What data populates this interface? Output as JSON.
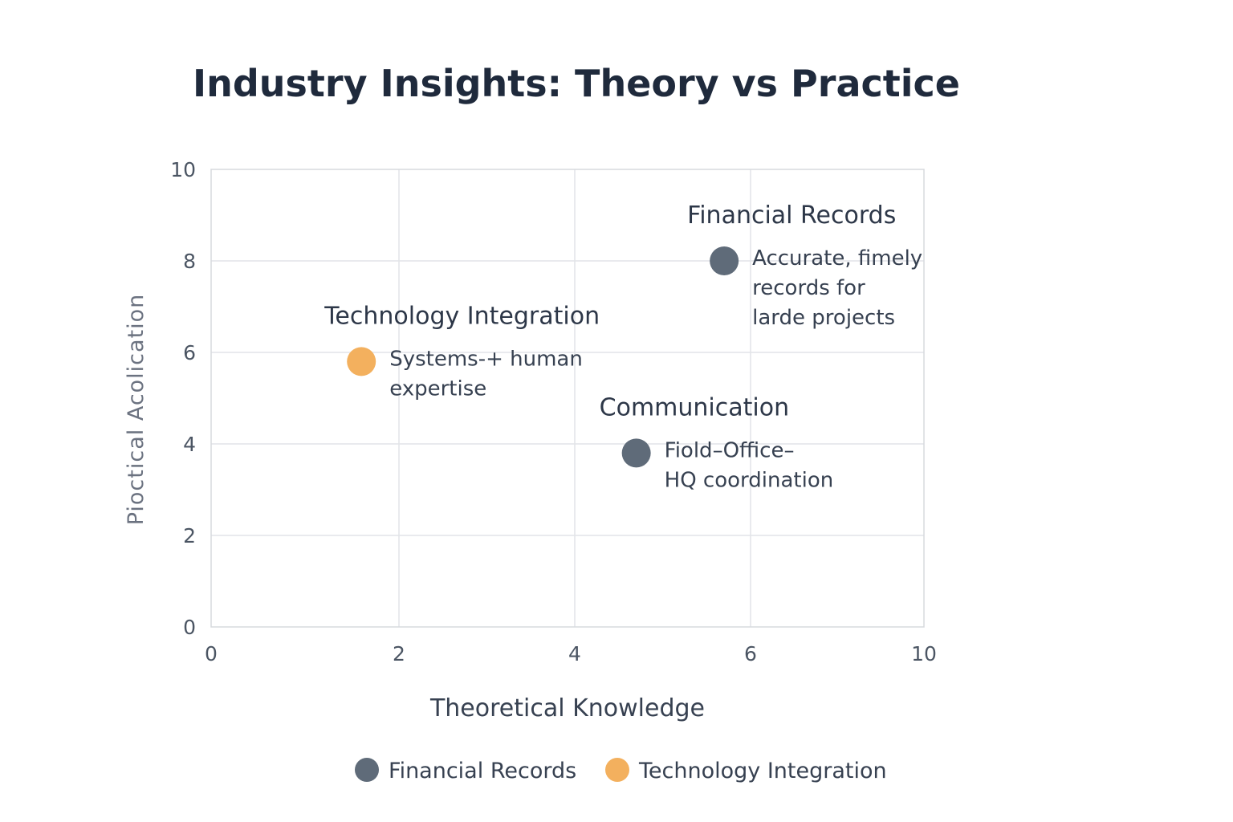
{
  "chart_data": {
    "type": "scatter",
    "title": "Industry Insights: Theory vs Practice",
    "xlabel": "Theoretical Knowledge",
    "ylabel": "Pioctical Acolication",
    "xlim": [
      0,
      10
    ],
    "ylim": [
      0,
      10
    ],
    "x_ticks": [
      0,
      2,
      4,
      6,
      10
    ],
    "y_ticks": [
      0,
      2,
      4,
      6,
      8,
      10
    ],
    "grid": true,
    "points": [
      {
        "x": 5.7,
        "y": 8.0,
        "label": "Financial Records",
        "desc": [
          "Accurate, fimely",
          "records for",
          "larde projects"
        ],
        "color": "#5f6b79"
      },
      {
        "x": 1.6,
        "y": 5.8,
        "label": "Technology Integration",
        "desc": [
          "Systems-+ human",
          "expertise"
        ],
        "color": "#f3b05e"
      },
      {
        "x": 4.7,
        "y": 3.8,
        "label": "Communication",
        "desc": [
          "Fiold–Office–",
          "HQ coordination"
        ],
        "color": "#5f6b79"
      }
    ],
    "legend": {
      "placement": "bottom",
      "items": [
        {
          "name": "Financial Records",
          "color": "#5f6b79"
        },
        {
          "name": "Technology Integration",
          "color": "#f3b05e"
        }
      ]
    }
  }
}
